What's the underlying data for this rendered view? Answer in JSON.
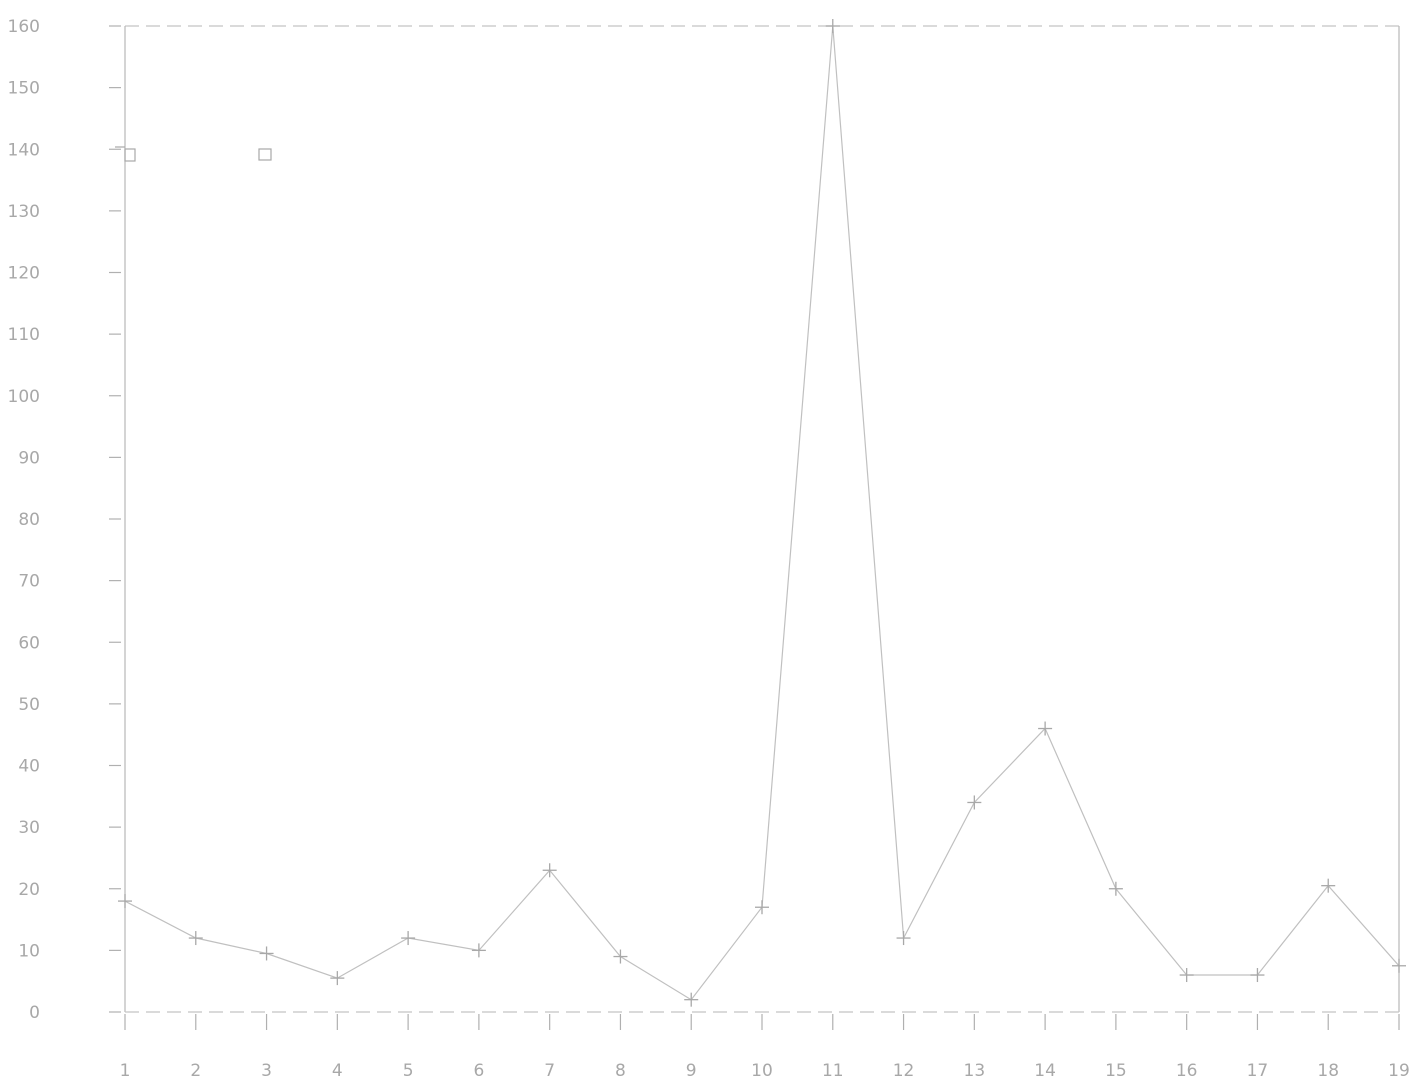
{
  "chart_data": {
    "type": "line",
    "title": "",
    "xlabel": "",
    "ylabel": "",
    "x": [
      1,
      2,
      3,
      4,
      5,
      6,
      7,
      8,
      9,
      10,
      11,
      12,
      13,
      14,
      15,
      16,
      17,
      18,
      19
    ],
    "x_tick_labels": [
      "1",
      "2",
      "3",
      "4",
      "5",
      "6",
      "7",
      "8",
      "9",
      "10",
      "11",
      "12",
      "13",
      "14",
      "15",
      "16",
      "17",
      "18",
      "19"
    ],
    "y_ticks": [
      0,
      10,
      20,
      30,
      40,
      50,
      60,
      70,
      80,
      90,
      100,
      110,
      120,
      130,
      140,
      150,
      160
    ],
    "y_tick_labels": [
      "0",
      "10",
      "20",
      "30",
      "40",
      "50",
      "60",
      "70",
      "80",
      "90",
      "100",
      "110",
      "120",
      "130",
      "140",
      "150",
      "160"
    ],
    "xlim": [
      1,
      19
    ],
    "ylim": [
      0,
      160
    ],
    "grid": false,
    "legend": "top-left",
    "series": [
      {
        "values": [
          18,
          12,
          9.5,
          5.5,
          12,
          10,
          23,
          9,
          2,
          17,
          160,
          12,
          34,
          46,
          20,
          6,
          6,
          20.5,
          7.5
        ]
      }
    ],
    "colors": {
      "line": "#c0c0c0",
      "marker": "#a8a8a8",
      "axis": "#b8b8b8",
      "text": "#a8a8a8"
    }
  }
}
